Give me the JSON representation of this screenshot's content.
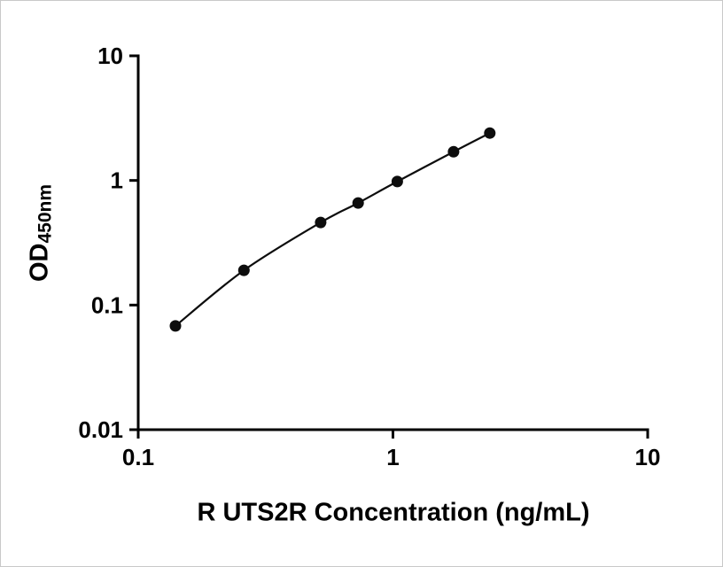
{
  "chart_data": {
    "type": "scatter",
    "curve": "smooth-through-points",
    "x": [
      0.14,
      0.26,
      0.52,
      0.73,
      1.04,
      1.73,
      2.4
    ],
    "y": [
      0.068,
      0.19,
      0.46,
      0.66,
      0.98,
      1.7,
      2.4
    ],
    "title": "",
    "xlabel": "R UTS2R Concentration (ng/mL)",
    "ylabel_main": "OD",
    "ylabel_sub": "450nm",
    "x_scale": "log",
    "y_scale": "log",
    "xlim": [
      0.1,
      10
    ],
    "ylim": [
      0.01,
      10
    ],
    "x_ticks": {
      "values": [
        0.1,
        1,
        10
      ],
      "labels": [
        "0.1",
        "1",
        "10"
      ]
    },
    "y_ticks": {
      "values": [
        10,
        1,
        0.1,
        0.01
      ],
      "labels": [
        "10",
        "1",
        "0.1",
        "0.01"
      ]
    },
    "grid": false,
    "legend": null,
    "marker_color": "#0d0d0d",
    "line_color": "#0d0d0d",
    "axis_color": "#000000"
  }
}
